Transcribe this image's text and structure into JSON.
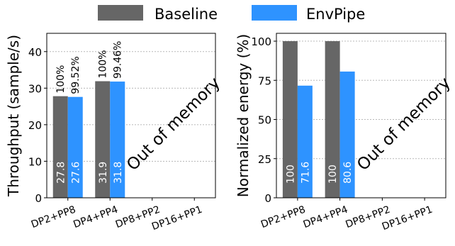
{
  "legend": {
    "items": [
      {
        "label": "Baseline",
        "color": "#666666"
      },
      {
        "label": "EnvPipe",
        "color": "#2e93ff"
      }
    ],
    "placement": "top-center"
  },
  "chart_data": [
    {
      "type": "bar",
      "title": "",
      "xlabel": "",
      "ylabel": "Throughput (sample/s)",
      "ylim": [
        0,
        45
      ],
      "yticks": [
        0,
        10,
        20,
        30,
        40
      ],
      "grid": true,
      "categories": [
        "DP2+PP8",
        "DP4+PP4",
        "DP8+PP2",
        "DP16+PP1"
      ],
      "series": [
        {
          "name": "Baseline",
          "color": "#666666",
          "values": [
            27.8,
            31.9,
            null,
            null
          ],
          "labels": [
            "27.8",
            "31.9",
            "",
            ""
          ],
          "top_labels": [
            "100%",
            "100%",
            "",
            ""
          ]
        },
        {
          "name": "EnvPipe",
          "color": "#2e93ff",
          "values": [
            27.6,
            31.8,
            null,
            null
          ],
          "labels": [
            "27.6",
            "31.8",
            "",
            ""
          ],
          "top_labels": [
            "99.52%",
            "99.46%",
            "",
            ""
          ]
        }
      ],
      "annotation": "Out of memory"
    },
    {
      "type": "bar",
      "title": "",
      "xlabel": "",
      "ylabel": "Normalized energy (%)",
      "ylim": [
        0,
        105
      ],
      "yticks": [
        0,
        25,
        50,
        75,
        100
      ],
      "grid": true,
      "categories": [
        "DP2+PP8",
        "DP4+PP4",
        "DP8+PP2",
        "DP16+PP1"
      ],
      "series": [
        {
          "name": "Baseline",
          "color": "#666666",
          "values": [
            100,
            100,
            null,
            null
          ],
          "labels": [
            "100",
            "100",
            "",
            ""
          ],
          "top_labels": [
            "",
            "",
            "",
            ""
          ]
        },
        {
          "name": "EnvPipe",
          "color": "#2e93ff",
          "values": [
            71.6,
            80.6,
            null,
            null
          ],
          "labels": [
            "71.6",
            "80.6",
            "",
            ""
          ],
          "top_labels": [
            "",
            "",
            "",
            ""
          ]
        }
      ],
      "annotation": "Out of memory"
    }
  ]
}
